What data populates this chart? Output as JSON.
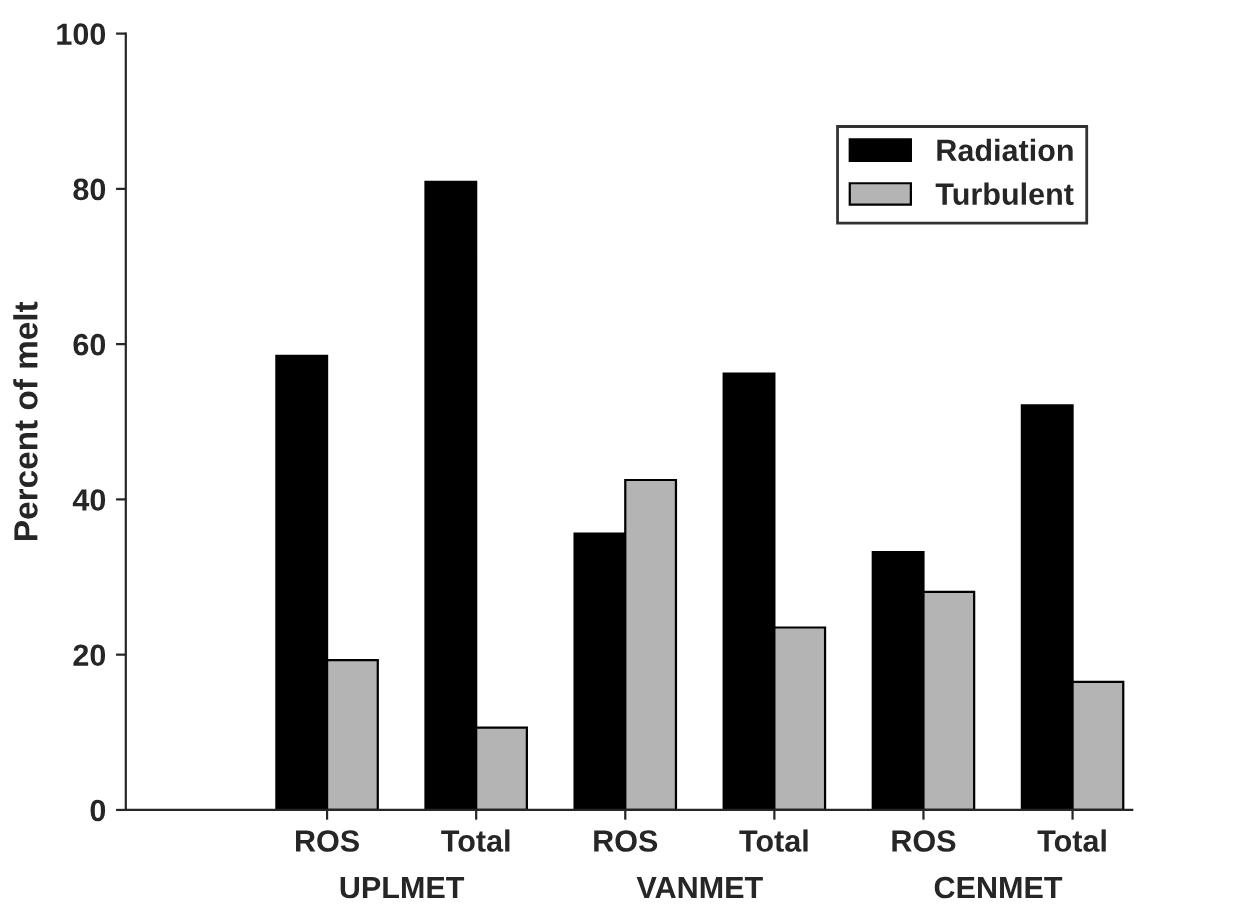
{
  "chart_data": {
    "type": "bar",
    "ylabel": "Percent of melt",
    "categories": [
      "ROS",
      "Total",
      "ROS",
      "Total",
      "ROS",
      "Total"
    ],
    "series": [
      {
        "name": "Radiation",
        "color": "#000000",
        "values": [
          58.5,
          80.9,
          35.6,
          56.2,
          33.2,
          52.1
        ]
      },
      {
        "name": "Turbulent",
        "color": "#b4b4b4",
        "values": [
          19.3,
          10.6,
          42.5,
          23.5,
          28.1,
          16.5
        ]
      }
    ],
    "annotations": [
      "UPLMET",
      "VANMET",
      "CENMET"
    ],
    "ylim": [
      0,
      100
    ],
    "yticks": [
      0,
      20,
      40,
      60,
      80,
      100
    ],
    "grid": false,
    "legend": "top right"
  }
}
